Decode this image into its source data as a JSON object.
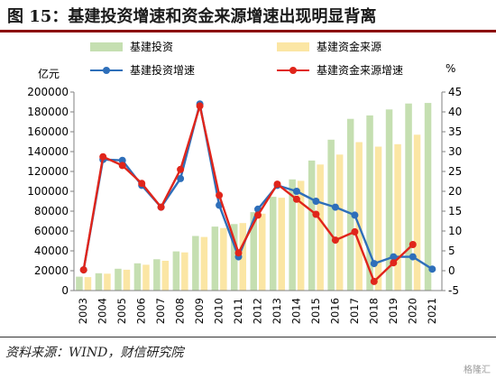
{
  "title": "图 15：基建投资增速和资金来源增速出现明显背离",
  "source": "资料来源：WIND，财信研究院",
  "watermark": "格隆汇",
  "chart_data": {
    "type": "bar",
    "categories": [
      "2003",
      "2004",
      "2005",
      "2006",
      "2007",
      "2008",
      "2009",
      "2010",
      "2011",
      "2012",
      "2013",
      "2014",
      "2015",
      "2016",
      "2017",
      "2018",
      "2019",
      "2020",
      "2021"
    ],
    "left_axis_unit": "亿元",
    "right_axis_unit": "%",
    "ylim_left": [
      0,
      200000
    ],
    "yticks_left": [
      0,
      20000,
      40000,
      60000,
      80000,
      100000,
      120000,
      140000,
      160000,
      180000,
      200000
    ],
    "ylim_right": [
      -5,
      45
    ],
    "yticks_right": [
      -5,
      0,
      5,
      10,
      15,
      20,
      25,
      30,
      35,
      40,
      45
    ],
    "legend_position": "top",
    "grid": false,
    "series": [
      {
        "name": "基建投资",
        "kind": "bar",
        "axis": "left",
        "color": "#c5dfb1",
        "values": [
          14000,
          17500,
          22000,
          27500,
          31500,
          39500,
          55000,
          64500,
          67000,
          79000,
          94500,
          112000,
          131000,
          152000,
          173000,
          176500,
          182500,
          188500,
          189000
        ]
      },
      {
        "name": "基建资金来源",
        "kind": "bar",
        "axis": "left",
        "color": "#fbe6a4",
        "values": [
          13500,
          17000,
          21000,
          26000,
          30000,
          38500,
          54000,
          63000,
          68000,
          77500,
          93500,
          110500,
          127000,
          137000,
          149500,
          145000,
          147500,
          157000,
          null
        ]
      },
      {
        "name": "基建投资增速",
        "kind": "line",
        "axis": "right",
        "color": "#2e6fba",
        "values": [
          0.2,
          28.0,
          27.8,
          21.5,
          16.0,
          23.2,
          42.0,
          16.5,
          3.5,
          15.5,
          21.5,
          20.0,
          17.5,
          16.0,
          14.0,
          1.8,
          3.5,
          3.5,
          0.4
        ]
      },
      {
        "name": "基建资金来源增速",
        "kind": "line",
        "axis": "right",
        "color": "#e0251b",
        "values": [
          0.2,
          28.7,
          26.5,
          22.0,
          16.0,
          25.5,
          41.5,
          19.0,
          4.5,
          14.0,
          21.8,
          18.0,
          14.2,
          7.7,
          9.8,
          -2.7,
          2.0,
          6.6,
          null
        ]
      }
    ]
  }
}
